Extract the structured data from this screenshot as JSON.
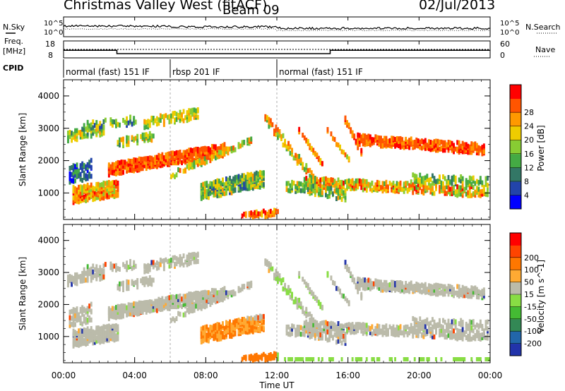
{
  "header": {
    "title": "Christmas Valley West (fitACF)",
    "beam": "Beam 09",
    "date": "02/Jul/2013"
  },
  "top_panels": {
    "nsky_label": "N.Sky",
    "nsky_ticks": [
      "10^5",
      "10^0"
    ],
    "nsearch_label": "N.Search",
    "nsearch_ticks": [
      "10^5",
      "10^0"
    ],
    "freq_label": "Freq.",
    "freq_unit": "[MHz]",
    "freq_ticks": [
      18,
      8
    ],
    "nave_label": "Nave",
    "nave_ticks": [
      60,
      0
    ],
    "cpid_label": "CPID",
    "cpid_segments": [
      {
        "label": "normal (fast) 151 IF",
        "start_hr": 0,
        "end_hr": 6
      },
      {
        "label": "rbsp 201 IF",
        "start_hr": 6,
        "end_hr": 12
      },
      {
        "label": "normal (fast) 151 IF",
        "start_hr": 12,
        "end_hr": 24
      }
    ],
    "freq_step": {
      "high": 12.5,
      "low": 10.5,
      "drop_hr": 3.0,
      "rise_hr": 15.0
    }
  },
  "chart_data": [
    {
      "type": "heatmap",
      "title": "",
      "ylabel": "Slant Range [km]",
      "xlabel": "",
      "x_range_hr": [
        0,
        24
      ],
      "ylim": [
        180,
        4500
      ],
      "y_ticks": [
        1000,
        2000,
        3000,
        4000
      ],
      "colorbar": {
        "label": "Power [dB]",
        "ticks": [
          "4",
          "8",
          "12",
          "16",
          "20",
          "24",
          "28"
        ],
        "colors": [
          "#0000ff",
          "#2244aa",
          "#337766",
          "#44aa44",
          "#88cc33",
          "#eecc00",
          "#ff9900",
          "#ff5500",
          "#ff0000"
        ]
      }
    },
    {
      "type": "heatmap",
      "title": "",
      "ylabel": "Slant Range [km]",
      "xlabel": "Time UT",
      "x_range_hr": [
        0,
        24
      ],
      "ylim": [
        180,
        4500
      ],
      "y_ticks": [
        1000,
        2000,
        3000,
        4000
      ],
      "x_ticks": [
        "00:00",
        "04:00",
        "08:00",
        "12:00",
        "16:00",
        "20:00",
        "00:00"
      ],
      "colorbar": {
        "label": "Velocity [m s^-1]",
        "ticks": [
          "200",
          "100",
          "50",
          "15",
          "-15",
          "-50",
          "-100",
          "-200"
        ],
        "colors": [
          "#2233aa",
          "#2266aa",
          "#338855",
          "#44bb33",
          "#88dd44",
          "#bbbbaa",
          "#ffaa33",
          "#ff7700",
          "#ff4400",
          "#ff0000"
        ]
      }
    }
  ]
}
